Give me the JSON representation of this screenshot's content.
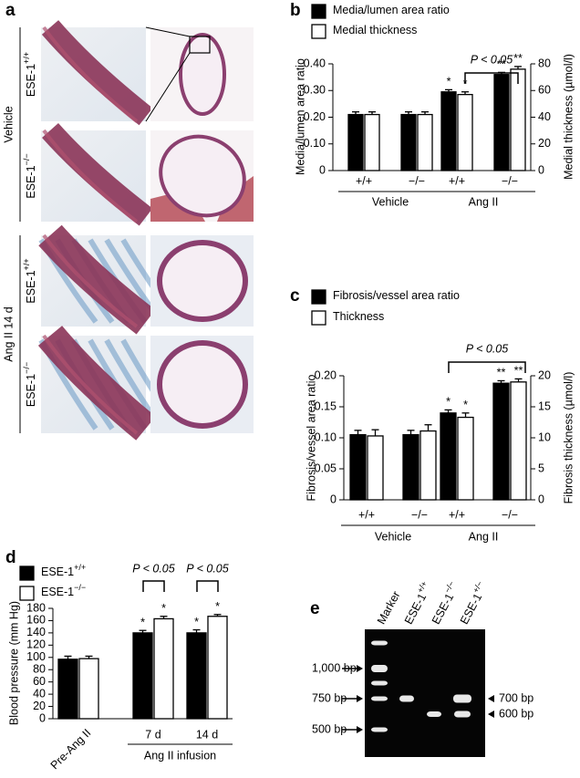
{
  "panel_a": {
    "label": "a",
    "groups": [
      {
        "label": "Vehicle",
        "rows": [
          {
            "base": "ESE-1",
            "sup": "+/+"
          },
          {
            "base": "ESE-1",
            "sup": "−/−"
          }
        ]
      },
      {
        "label": "Ang II 14 d",
        "rows": [
          {
            "base": "ESE-1",
            "sup": "+/+"
          },
          {
            "base": "ESE-1",
            "sup": "−/−"
          }
        ]
      }
    ]
  },
  "chart_data": [
    {
      "type": "bar",
      "label": "b",
      "categories": [
        "+/+",
        "−/−",
        "+/+",
        "−/−"
      ],
      "groups": [
        "Vehicle",
        "Ang II"
      ],
      "ylabel": "Media/lumen area ratio",
      "y2label": "Medial thickness (µmol/l)",
      "ylim": [
        0,
        0.4
      ],
      "yticks": [
        0,
        {
          "value": 0.1,
          "label": "0.10"
        },
        {
          "value": 0.2,
          "label": "0.20"
        },
        {
          "value": 0.3,
          "label": "0.30"
        },
        {
          "value": 0.4,
          "label": "0.40"
        }
      ],
      "y2lim": [
        0,
        80
      ],
      "y2ticks": [
        0,
        20,
        40,
        60,
        80
      ],
      "series": [
        {
          "name": "Media/lumen area ratio",
          "color": "#000000",
          "values": [
            0.21,
            0.21,
            0.295,
            0.36
          ],
          "errors": [
            0.01,
            0.01,
            0.008,
            0.008
          ],
          "markers": [
            null,
            null,
            "*",
            "**"
          ]
        },
        {
          "name": "Medial thickness",
          "color": "#ffffff",
          "axis": "y2",
          "values": [
            42,
            42,
            57,
            76
          ],
          "errors": [
            2,
            2,
            2,
            2
          ],
          "markers": [
            null,
            null,
            "*",
            "**"
          ]
        }
      ],
      "annotations": [
        "P < 0.05"
      ]
    },
    {
      "type": "bar",
      "label": "c",
      "categories": [
        "+/+",
        "−/−",
        "+/+",
        "−/−"
      ],
      "groups": [
        "Vehicle",
        "Ang II"
      ],
      "ylabel": "Fibrosis/vessel area ratio",
      "y2label": "Fibrosis thickness (µmol/l)",
      "ylim": [
        0,
        0.2
      ],
      "yticks": [
        0,
        0.05,
        {
          "value": 0.1,
          "label": "0.10"
        },
        0.15,
        {
          "value": 0.2,
          "label": "0.20"
        }
      ],
      "y2lim": [
        0,
        20
      ],
      "y2ticks": [
        0,
        5,
        10,
        15,
        20
      ],
      "series": [
        {
          "name": "Fibrosis/vessel area ratio",
          "color": "#000000",
          "values": [
            0.105,
            0.105,
            0.14,
            0.188
          ],
          "errors": [
            0.007,
            0.007,
            0.005,
            0.004
          ],
          "markers": [
            null,
            null,
            "*",
            "**"
          ]
        },
        {
          "name": "Thickness",
          "color": "#ffffff",
          "axis": "y2",
          "values": [
            10.3,
            11.1,
            13.3,
            19
          ],
          "errors": [
            1,
            1,
            0.7,
            0.5
          ],
          "markers": [
            null,
            null,
            "*",
            "**"
          ]
        }
      ],
      "annotations": [
        "P < 0.05"
      ]
    },
    {
      "type": "bar",
      "label": "d",
      "categories": [
        "Pre-Ang II",
        "7 d",
        "14 d"
      ],
      "groups": [
        "Ang II infusion"
      ],
      "ylabel": "Blood pressure (mm Hg)",
      "ylim": [
        0,
        180
      ],
      "yticks": [
        0,
        20,
        40,
        60,
        80,
        100,
        120,
        140,
        160,
        180
      ],
      "series": [
        {
          "name": "ESE-1",
          "name_sup": "+/+",
          "color": "#000000",
          "values": [
            97,
            140,
            140
          ],
          "errors": [
            5,
            4,
            5
          ],
          "markers": [
            null,
            "*",
            "*"
          ]
        },
        {
          "name": "ESE-1",
          "name_sup": "−/−",
          "color": "#ffffff",
          "values": [
            98,
            163,
            167
          ],
          "errors": [
            4,
            4,
            3
          ],
          "markers": [
            null,
            "*",
            "*"
          ]
        }
      ],
      "annotations": [
        "P < 0.05",
        "P < 0.05"
      ]
    }
  ],
  "panel_e": {
    "label": "e",
    "lanes": [
      {
        "base": "Marker"
      },
      {
        "base": "ESE-1",
        "sup": "+/+"
      },
      {
        "base": "ESE-1",
        "sup": "−/−"
      },
      {
        "base": "ESE-1",
        "sup": "+/−"
      }
    ],
    "left_markers": [
      "1,000 bp",
      "750 bp",
      "500 bp"
    ],
    "right_markers": [
      "700 bp",
      "600 bp"
    ]
  }
}
